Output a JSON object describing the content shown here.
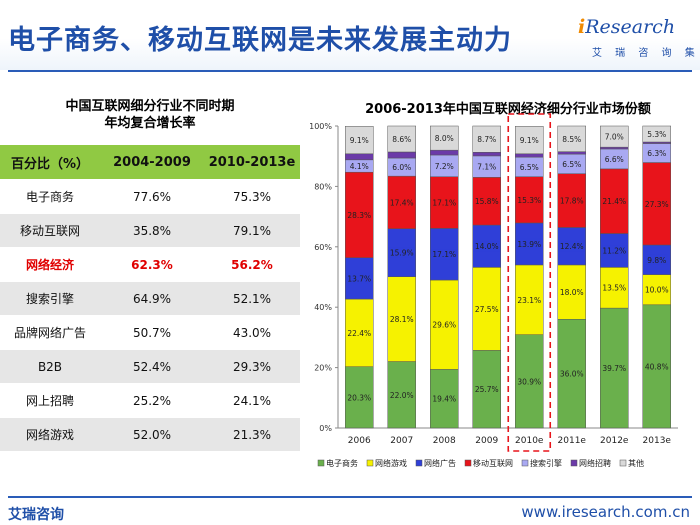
{
  "title": "电子商务、移动互联网是未来发展主动力",
  "logo": {
    "word_i": "i",
    "word_rest": "Research",
    "subtitle": "艾 瑞 咨 询 集 团"
  },
  "table": {
    "title_line1": "中国互联网细分行业不同时期",
    "title_line2": "年均复合增长率",
    "headers": [
      "百分比（%）",
      "2004-2009",
      "2010-2013e"
    ],
    "rows": [
      [
        "电子商务",
        "77.6%",
        "75.3%"
      ],
      [
        "移动互联网",
        "35.8%",
        "79.1%"
      ],
      [
        "网络经济",
        "62.3%",
        "56.2%"
      ],
      [
        "搜索引擎",
        "64.9%",
        "52.1%"
      ],
      [
        "品牌网络广告",
        "50.7%",
        "43.0%"
      ],
      [
        "B2B",
        "52.4%",
        "29.3%"
      ],
      [
        "网上招聘",
        "25.2%",
        "24.1%"
      ],
      [
        "网络游戏",
        "52.0%",
        "21.3%"
      ]
    ],
    "highlight_row": 2,
    "highlight_color": "#e00000",
    "header_color": "#90c943",
    "shade_color": "#e6e6e6"
  },
  "chart_data": {
    "type": "bar",
    "stacked": true,
    "title": "2006-2013年中国互联网经济细分行业市场份额",
    "categories": [
      "2006",
      "2007",
      "2008",
      "2009",
      "2010e",
      "2011e",
      "2012e",
      "2013e"
    ],
    "ylim": [
      0,
      100
    ],
    "yticks": [
      "0%",
      "20%",
      "40%",
      "60%",
      "80%",
      "100%"
    ],
    "highlight_category": "2010e",
    "highlight_style": "red dashed box",
    "legend_position": "bottom",
    "grid": false,
    "series": [
      {
        "name": "电子商务",
        "color": "#6ab04c",
        "values": [
          20.3,
          22.0,
          19.4,
          25.7,
          30.9,
          36.0,
          39.7,
          40.8
        ],
        "labels": [
          "20.3%",
          "22.0%",
          "19.4%",
          "25.7%",
          "30.9%",
          "36.0%",
          "39.7%",
          "40.8%"
        ]
      },
      {
        "name": "网络游戏",
        "color": "#f6f200",
        "values": [
          22.4,
          28.1,
          29.6,
          27.5,
          23.1,
          18.0,
          13.5,
          10.0
        ],
        "labels": [
          "22.4%",
          "28.1%",
          "29.6%",
          "27.5%",
          "23.1%",
          "18.0%",
          "13.5%",
          "10.0%"
        ]
      },
      {
        "name": "网络广告",
        "color": "#2f3fd8",
        "values": [
          13.7,
          15.9,
          17.1,
          14.0,
          13.9,
          12.4,
          11.2,
          9.8
        ],
        "labels": [
          "13.7%",
          "15.9%",
          "17.1%",
          "14.0%",
          "13.9%",
          "12.4%",
          "11.2%",
          "9.8%"
        ]
      },
      {
        "name": "移动互联网",
        "color": "#e8141b",
        "values": [
          28.3,
          17.4,
          17.1,
          15.8,
          15.3,
          17.8,
          21.4,
          27.3
        ],
        "labels": [
          "28.3%",
          "17.4%",
          "17.1%",
          "15.8%",
          "15.3%",
          "17.8%",
          "21.4%",
          "27.3%"
        ]
      },
      {
        "name": "搜索引擎",
        "color": "#a9a9f2",
        "values": [
          4.1,
          6.0,
          7.2,
          7.1,
          6.5,
          6.5,
          6.6,
          6.3
        ],
        "labels": [
          "4.1%",
          "6.0%",
          "7.2%",
          "7.1%",
          "6.5%",
          "6.5%",
          "6.6%",
          "6.3%"
        ]
      },
      {
        "name": "网络招聘",
        "color": "#6b3aa8",
        "values": [
          2.0,
          2.0,
          1.6,
          1.2,
          1.1,
          0.8,
          0.6,
          0.5
        ],
        "labels": [
          "",
          "",
          "",
          "",
          "",
          "",
          "",
          ""
        ]
      },
      {
        "name": "其他",
        "color": "#d9d9d9",
        "values": [
          9.1,
          8.6,
          8.0,
          8.7,
          9.1,
          8.5,
          7.0,
          5.3
        ],
        "labels": [
          "9.1%",
          "8.6%",
          "8.0%",
          "8.7%",
          "9.1%",
          "8.5%",
          "7.0%",
          "5.3%"
        ]
      }
    ]
  },
  "footer": {
    "company": "艾瑞咨询",
    "url": "www.iresearch.com.cn"
  }
}
